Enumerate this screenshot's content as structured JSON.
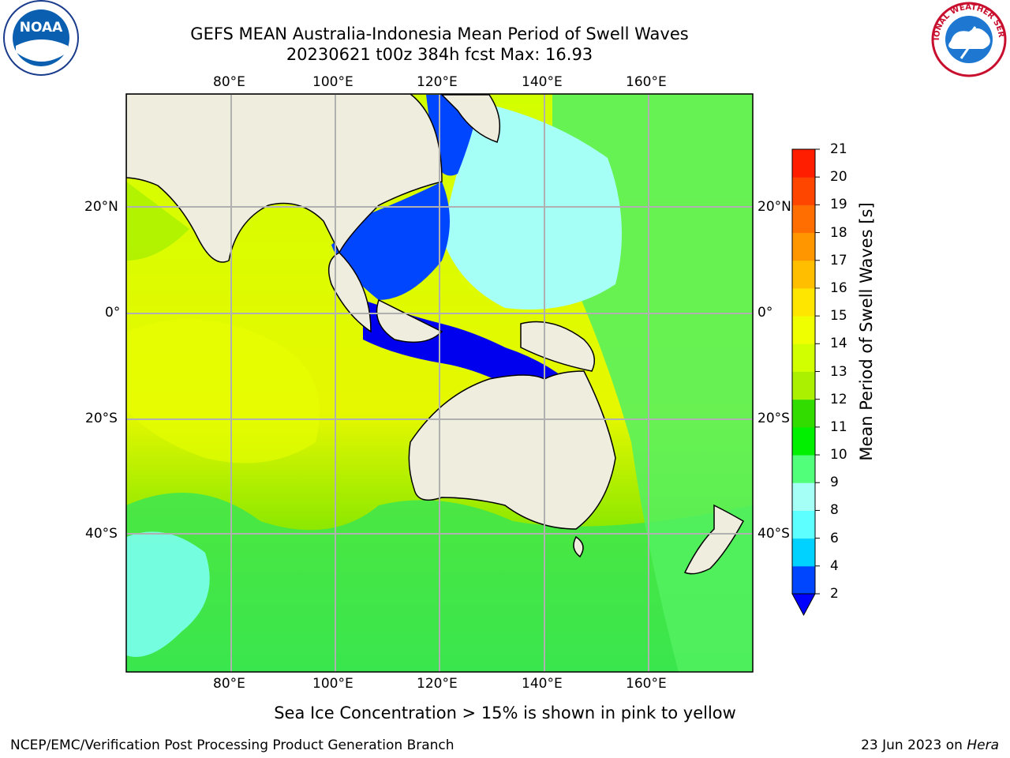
{
  "title": {
    "line1": "GEFS MEAN Australia-Indonesia Mean Period of Swell Waves",
    "line2": "20230621 t00z 384h fcst   Max: 16.93"
  },
  "axes": {
    "lon_labels": [
      "80°E",
      "100°E",
      "120°E",
      "140°E",
      "160°E"
    ],
    "lat_labels": [
      "20°N",
      "0°",
      "20°S",
      "40°S"
    ]
  },
  "colorbar": {
    "label": "Mean Period of Swell Waves [s]",
    "ticks": [
      "2",
      "4",
      "6",
      "8",
      "9",
      "10",
      "11",
      "12",
      "13",
      "14",
      "15",
      "16",
      "17",
      "18",
      "19",
      "20",
      "21"
    ],
    "colors": [
      "#0046ff",
      "#00d2ff",
      "#5effff",
      "#a6fff6",
      "#51ff7a",
      "#00f000",
      "#32dc00",
      "#aaf000",
      "#d2ff00",
      "#f0ff00",
      "#ffe600",
      "#ffbe00",
      "#ff9600",
      "#ff6e00",
      "#ff4600",
      "#ff1e00"
    ],
    "under_color": "#0000ff"
  },
  "map_colors": {
    "land": "#efedde",
    "grid": "#b0b0b0"
  },
  "logos": {
    "noaa_text": "NOAA",
    "nws_text": "NATIONAL WEATHER SERVICE"
  },
  "footer": {
    "note": "Sea Ice Concentration > 15% is shown in pink to yellow",
    "left": "NCEP/EMC/Verification Post Processing Product Generation Branch",
    "right_date": "23 Jun 2023 on ",
    "right_host": "Hera"
  }
}
